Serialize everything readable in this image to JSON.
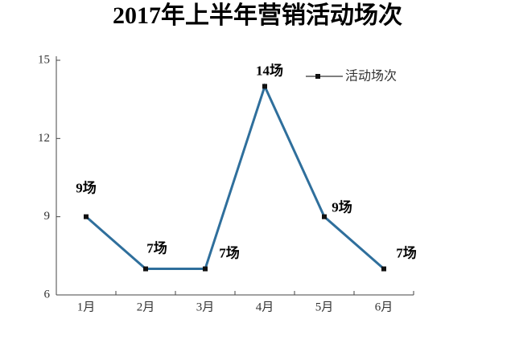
{
  "chart_data": {
    "type": "line",
    "title": "2017年上半年营销活动场次",
    "categories": [
      "1月",
      "2月",
      "3月",
      "4月",
      "5月",
      "6月"
    ],
    "series": [
      {
        "name": "活动场次",
        "color": "#2f6f9c",
        "values": [
          9,
          7,
          7,
          14,
          9,
          7
        ],
        "value_labels": [
          "9场",
          "7场",
          "7场",
          "14场",
          "9场",
          "7场"
        ]
      }
    ],
    "ylim": [
      6,
      15
    ],
    "yticks": [
      6,
      9,
      12,
      15
    ],
    "legend": "upper right"
  }
}
